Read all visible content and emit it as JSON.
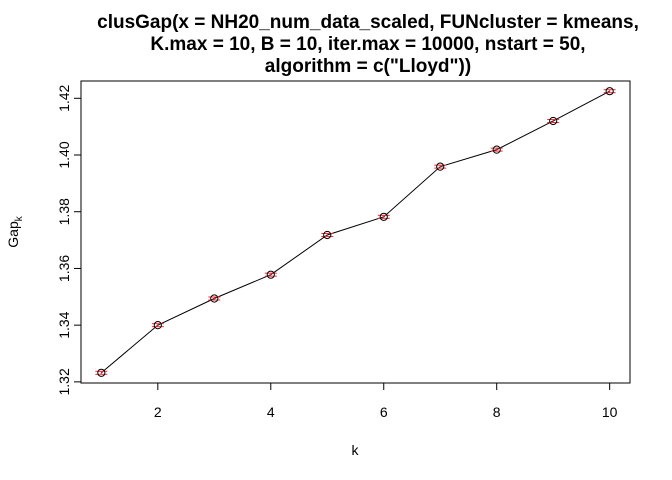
{
  "chart_data": {
    "type": "line",
    "title_lines": [
      "clusGap(x = NH20_num_data_scaled, FUNcluster = kmeans,",
      "K.max = 10, B = 10, iter.max = 10000, nstart = 50,",
      "algorithm = c(\"Lloyd\"))"
    ],
    "xlabel": "k",
    "ylabel_main": "Gap",
    "ylabel_sub": "k",
    "x": [
      1,
      2,
      3,
      4,
      5,
      6,
      7,
      8,
      9,
      10
    ],
    "y": [
      1.3232,
      1.34,
      1.3494,
      1.3578,
      1.3718,
      1.3782,
      1.3959,
      1.4019,
      1.412,
      1.4225
    ],
    "xticks": [
      2,
      4,
      6,
      8,
      10
    ],
    "yticks": [
      1.32,
      1.34,
      1.36,
      1.38,
      1.4,
      1.42
    ],
    "ytick_labels": [
      "1.32",
      "1.34",
      "1.36",
      "1.38",
      "1.40",
      "1.42"
    ],
    "xlim": [
      0.64,
      10.36
    ],
    "ylim": [
      1.3196,
      1.4261
    ],
    "grid": false,
    "point_color": "#000000",
    "errorbar_color": "#e8303a",
    "line_color": "#000000"
  }
}
